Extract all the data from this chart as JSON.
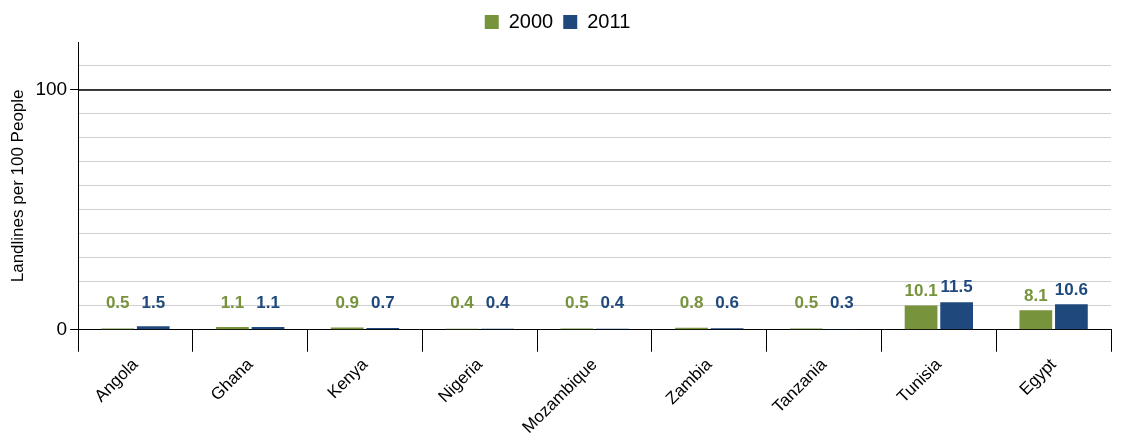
{
  "chart_data": {
    "type": "bar",
    "ylabel": "Landlines per 100 People",
    "categories": [
      "Angola",
      "Ghana",
      "Kenya",
      "Nigeria",
      "Mozambique",
      "Zambia",
      "Tanzania",
      "Tunisia",
      "Egypt"
    ],
    "series": [
      {
        "name": "2000",
        "color": "#77933c",
        "values": [
          0.5,
          1.1,
          0.9,
          0.4,
          0.5,
          0.8,
          0.5,
          10.1,
          8.1
        ]
      },
      {
        "name": "2011",
        "color": "#1f497d",
        "values": [
          1.5,
          1.1,
          0.7,
          0.4,
          0.4,
          0.6,
          0.3,
          11.5,
          10.6
        ]
      }
    ],
    "ylim": [
      0,
      120
    ],
    "yticks": [
      0,
      {
        "value": 10,
        "label": null
      },
      {
        "value": 20,
        "label": null
      },
      {
        "value": 30,
        "label": null
      },
      {
        "value": 40,
        "label": null
      },
      {
        "value": 50,
        "label": null
      },
      {
        "value": 60,
        "label": null
      },
      {
        "value": 70,
        "label": null
      },
      {
        "value": 80,
        "label": null
      },
      {
        "value": 90,
        "label": null
      },
      100,
      {
        "value": 110,
        "label": null
      }
    ],
    "ref_lines": [
      {
        "axis": "y",
        "value": 100,
        "color": "#000000"
      }
    ],
    "grid": "y",
    "legend": "top",
    "data_labels": true
  }
}
